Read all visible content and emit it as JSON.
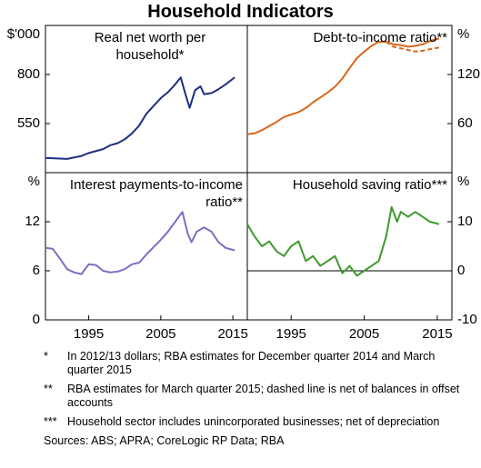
{
  "title": "Household Indicators",
  "chart_data": [
    {
      "type": "line",
      "title": "Real net worth per household*",
      "y_unit": "$'000",
      "x": [
        1989,
        1992,
        1994,
        1995,
        1997,
        1998,
        1999,
        2000,
        2001,
        2002,
        2003,
        2004,
        2005,
        2006,
        2007,
        2007.75,
        2008.5,
        2009,
        2009.75,
        2010.5,
        2011,
        2012,
        2013,
        2014,
        2015.25
      ],
      "xlim": [
        1989,
        2017
      ],
      "ylim": [
        300,
        1050
      ],
      "yticks": [
        550,
        800
      ],
      "series": [
        {
          "color": "#1f2f80",
          "values": [
            375,
            370,
            385,
            400,
            420,
            440,
            450,
            470,
            500,
            540,
            600,
            640,
            680,
            710,
            750,
            785,
            690,
            630,
            720,
            740,
            700,
            705,
            725,
            750,
            785
          ]
        }
      ]
    },
    {
      "type": "line",
      "title": "Debt-to-income ratio**",
      "y_unit": "%",
      "x": [
        1989,
        1990,
        1991,
        1992,
        1993,
        1994,
        1995,
        1996,
        1997,
        1998,
        1999,
        2000,
        2001,
        2002,
        2003,
        2004,
        2005,
        2006,
        2007,
        2008,
        2009,
        2010,
        2011,
        2012,
        2013,
        2014,
        2015.25
      ],
      "xlim": [
        1989,
        2017
      ],
      "ylim": [
        0,
        180
      ],
      "yticks": [
        60,
        120
      ],
      "series": [
        {
          "color": "#d9661b",
          "values": [
            47,
            48,
            52,
            57,
            62,
            68,
            71,
            74,
            79,
            86,
            92,
            98,
            105,
            115,
            128,
            140,
            148,
            155,
            160,
            160,
            157,
            156,
            154,
            155,
            157,
            161,
            164
          ]
        },
        {
          "color": "#d9661b",
          "dashed": true,
          "values": [
            null,
            null,
            null,
            null,
            null,
            null,
            null,
            null,
            null,
            null,
            null,
            null,
            null,
            null,
            null,
            null,
            null,
            null,
            null,
            160,
            154,
            152,
            150,
            148,
            149,
            151,
            153
          ]
        }
      ]
    },
    {
      "type": "line",
      "title": "Interest payments-to-income ratio**",
      "y_unit": "%",
      "x": [
        1989,
        1990,
        1991,
        1992,
        1993,
        1994,
        1995,
        1996,
        1997,
        1998,
        1999,
        2000,
        2001,
        2002,
        2003,
        2004,
        2005,
        2006,
        2007,
        2008,
        2008.75,
        2009.25,
        2010,
        2011,
        2012,
        2013,
        2014,
        2015.25
      ],
      "xlim": [
        1989,
        2017
      ],
      "ylim": [
        0,
        18
      ],
      "yticks": [
        0,
        6,
        12
      ],
      "xticks": [
        1995,
        2005,
        2015
      ],
      "series": [
        {
          "color": "#7b6fc4",
          "values": [
            8.8,
            8.7,
            7.5,
            6.2,
            5.8,
            5.6,
            6.8,
            6.7,
            6.0,
            5.8,
            5.9,
            6.2,
            6.8,
            7.0,
            8.0,
            8.9,
            9.8,
            10.8,
            12.0,
            13.2,
            10.5,
            9.5,
            10.8,
            11.3,
            10.8,
            9.5,
            8.8,
            8.5
          ]
        }
      ]
    },
    {
      "type": "line",
      "title": "Household saving ratio***",
      "y_unit": "%",
      "zero_line": true,
      "x": [
        1989,
        1990,
        1991,
        1992,
        1993,
        1994,
        1995,
        1996,
        1997,
        1998,
        1999,
        2000,
        2001,
        2002,
        2003,
        2004,
        2005,
        2006,
        2007,
        2008,
        2008.75,
        2009.5,
        2010,
        2011,
        2012,
        2013,
        2014,
        2015.25
      ],
      "xlim": [
        1989,
        2017
      ],
      "ylim": [
        -10,
        20
      ],
      "yticks": [
        -10,
        0,
        10
      ],
      "xticks": [
        1995,
        2005,
        2015
      ],
      "series": [
        {
          "color": "#3f9a2e",
          "values": [
            9.5,
            7,
            5,
            6,
            4,
            3,
            5,
            6,
            2,
            3,
            1,
            2,
            3,
            -0.5,
            1,
            -1,
            0,
            1,
            2,
            7,
            13,
            10,
            12,
            11,
            12,
            11,
            10,
            9.5
          ]
        }
      ]
    }
  ],
  "notes": [
    {
      "marker": "*",
      "text": "In 2012/13 dollars; RBA estimates for December quarter 2014 and March quarter 2015"
    },
    {
      "marker": "**",
      "text": "RBA estimates for March quarter 2015; dashed line is net of balances in offset accounts"
    },
    {
      "marker": "***",
      "text": "Household sector includes unincorporated businesses; net of depreciation"
    }
  ],
  "sources": "Sources: ABS; APRA; CoreLogic RP Data; RBA"
}
